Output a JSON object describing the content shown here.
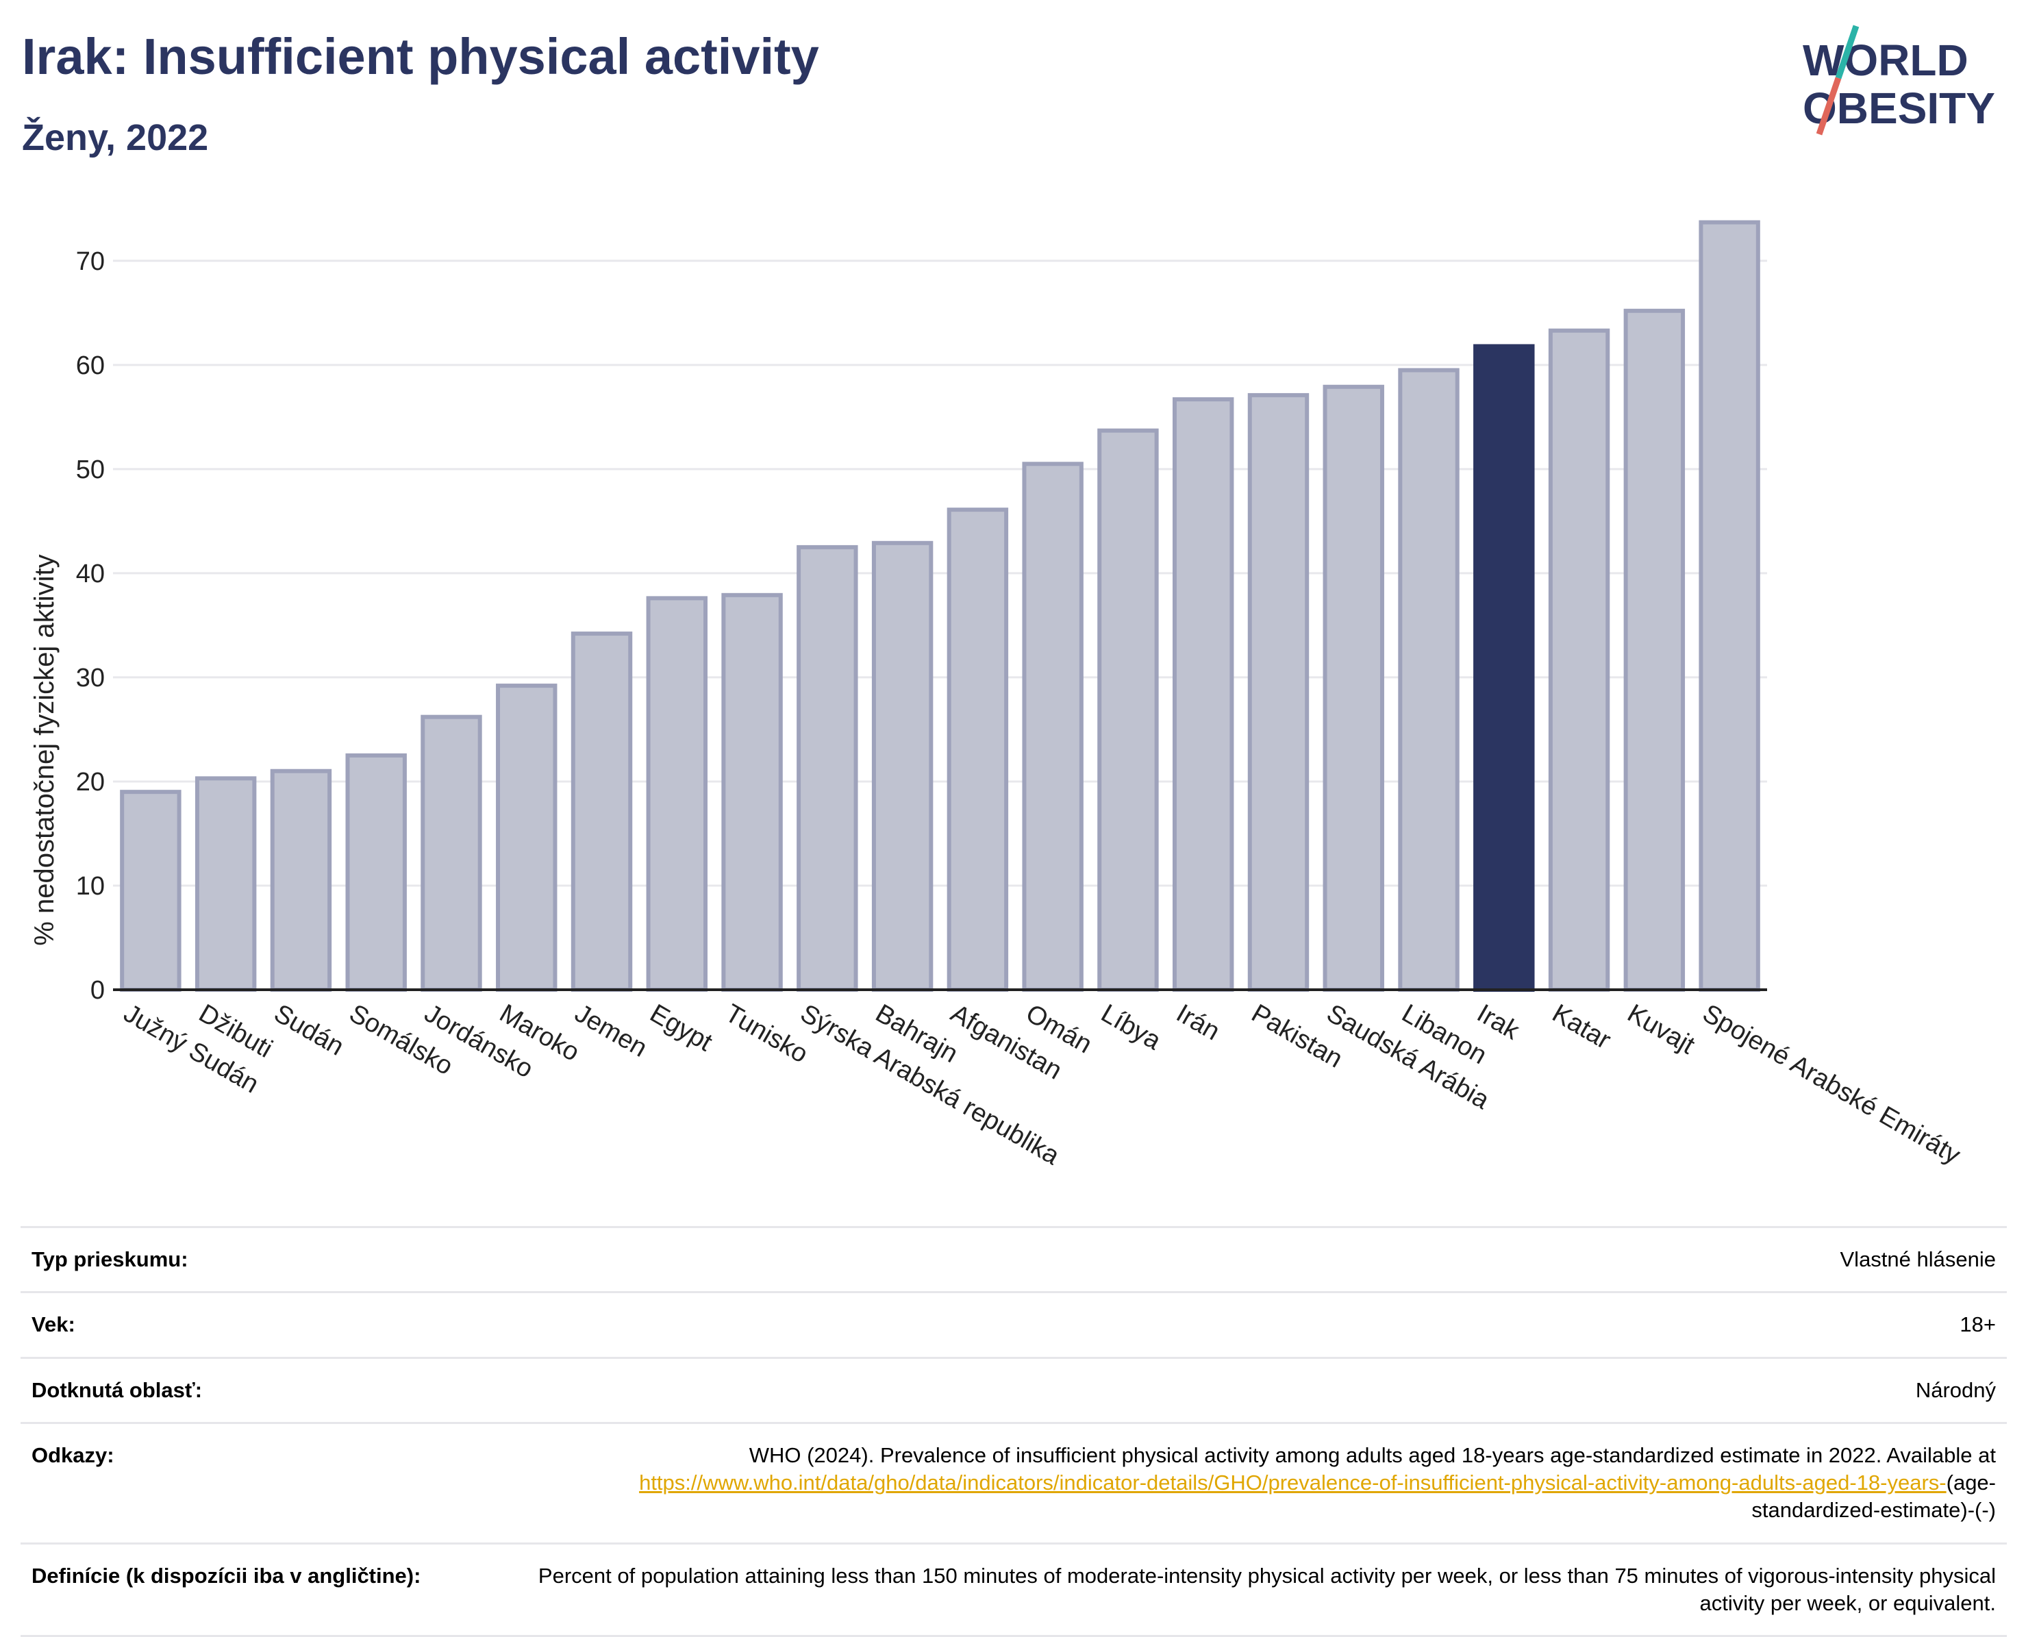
{
  "header": {
    "title": "Irak: Insufficient physical activity",
    "subtitle": "Ženy, 2022"
  },
  "logo": {
    "line1": "WORLD",
    "line2": "OBESITY"
  },
  "colors": {
    "highlight": "#2b3561",
    "bar": "#bfc2d0",
    "bar_stroke": "#9ea2bb",
    "grid": "#e8e8ec",
    "link": "#e0a600"
  },
  "chart_data": {
    "type": "bar",
    "title": "Irak: Insufficient physical activity",
    "subtitle": "Ženy, 2022",
    "ylabel": "% nedostatočnej fyzickej aktivity",
    "xlabel": "",
    "ylim": [
      0,
      74
    ],
    "yticks": [
      0,
      10,
      20,
      30,
      40,
      50,
      60,
      70
    ],
    "grid": true,
    "highlight": "Irak",
    "categories": [
      "Južný Sudán",
      "Džibuti",
      "Sudán",
      "Somálsko",
      "Jordánsko",
      "Maroko",
      "Jemen",
      "Egypt",
      "Tunisko",
      "Sýrska Arabská republika",
      "Bahrajn",
      "Afganistan",
      "Omán",
      "Líbya",
      "Irán",
      "Pakistan",
      "Saudská Arábia",
      "Libanon",
      "Irak",
      "Katar",
      "Kuvajt",
      "Spojené Arabské Emiráty"
    ],
    "values": [
      19.0,
      20.3,
      21.0,
      22.5,
      26.2,
      29.2,
      34.2,
      37.6,
      37.9,
      42.5,
      42.9,
      46.1,
      50.5,
      53.7,
      56.7,
      57.1,
      57.9,
      59.5,
      61.8,
      63.3,
      65.2,
      73.7
    ]
  },
  "info": {
    "rows": [
      {
        "label": "Typ prieskumu:",
        "value": "Vlastné hlásenie"
      },
      {
        "label": "Vek:",
        "value": "18+"
      },
      {
        "label": "Dotknutá oblasť:",
        "value": "Národný"
      },
      {
        "label": "Odkazy:",
        "value": "WHO (2024). Prevalence of insufficient physical activity among adults aged 18-years age-standardized estimate in 2022. Available at",
        "link": "https://www.who.int/data/gho/data/indicators/indicator-details/GHO/prevalence-of-insufficient-physical-activity-among-adults-aged-18-years-",
        "suffix": "(age-standardized-estimate)-(-)"
      },
      {
        "label": "Definície (k dispozícii iba v angličtine):",
        "value": "Percent of population attaining less than 150 minutes of moderate-intensity physical activity per week, or less than 75 minutes of vigorous-intensity physical activity per week, or equivalent."
      }
    ]
  }
}
